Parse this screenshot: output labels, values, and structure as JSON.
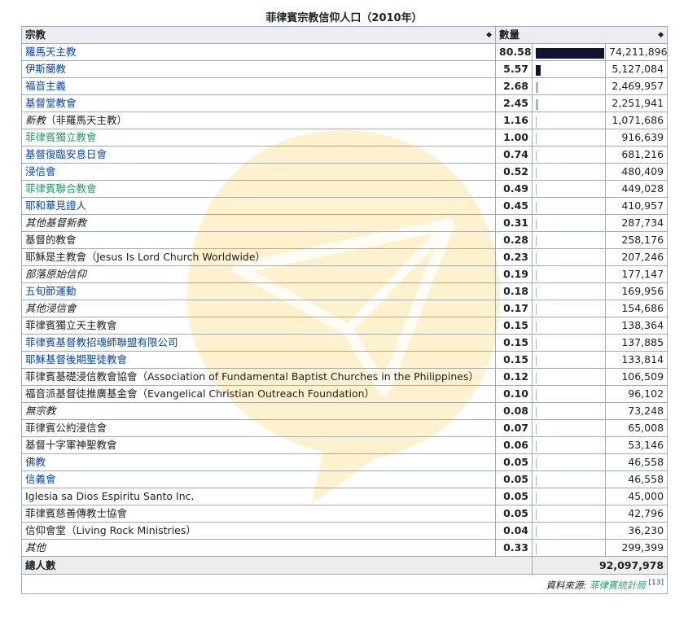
{
  "caption": "菲律賓宗教信仰人口（2010年）",
  "headers": {
    "religion": "宗教",
    "count": "數量"
  },
  "rows": [
    {
      "name": "羅馬天主教",
      "pct": "80.58",
      "count": "74,211,896",
      "style": "link"
    },
    {
      "name": "伊斯蘭教",
      "pct": "5.57",
      "count": "5,127,084",
      "style": "link"
    },
    {
      "name": "福音主義",
      "pct": "2.68",
      "count": "2,469,957",
      "style": "link"
    },
    {
      "name": "基督堂教會",
      "pct": "2.45",
      "count": "2,251,941",
      "style": "link"
    },
    {
      "name": "新教",
      "suffix": "（非羅馬天主教）",
      "pct": "1.16",
      "count": "1,071,686",
      "style": "italic"
    },
    {
      "name": "菲律賓獨立教會",
      "pct": "1.00",
      "count": "916,639",
      "style": "green"
    },
    {
      "name": "基督復臨安息日會",
      "pct": "0.74",
      "count": "681,216",
      "style": "link"
    },
    {
      "name": "浸信會",
      "pct": "0.52",
      "count": "480,409",
      "style": "link"
    },
    {
      "name": "菲律賓聯合教會",
      "pct": "0.49",
      "count": "449,028",
      "style": "green"
    },
    {
      "name": "耶和華見證人",
      "pct": "0.45",
      "count": "410,957",
      "style": "link"
    },
    {
      "name": "其他基督新教",
      "pct": "0.31",
      "count": "287,734",
      "style": "italic"
    },
    {
      "name": "基督的教會",
      "pct": "0.28",
      "count": "258,176",
      "style": "plain"
    },
    {
      "name": "耶穌是主教會（Jesus Is Lord Church Worldwide）",
      "pct": "0.23",
      "count": "207,246",
      "style": "plain"
    },
    {
      "name": "部落原始信仰",
      "pct": "0.19",
      "count": "177,147",
      "style": "italic"
    },
    {
      "name": "五旬節運動",
      "pct": "0.18",
      "count": "169,956",
      "style": "link"
    },
    {
      "name": "其他浸信會",
      "pct": "0.17",
      "count": "154,686",
      "style": "italic"
    },
    {
      "name": "菲律賓獨立天主教會",
      "pct": "0.15",
      "count": "138,364",
      "style": "plain"
    },
    {
      "name": "菲律賓基督教招魂師聯盟有限公司",
      "pct": "0.15",
      "count": "137,885",
      "style": "link"
    },
    {
      "name": "耶穌基督後期聖徒教會",
      "pct": "0.15",
      "count": "133,814",
      "style": "link"
    },
    {
      "name": "菲律賓基礎浸信教會協會（Association of Fundamental Baptist Churches in the Philippines）",
      "pct": "0.12",
      "count": "106,509",
      "style": "plain"
    },
    {
      "name": "福音派基督徒推廣基金會（Evangelical Christian Outreach Foundation）",
      "pct": "0.10",
      "count": "96,102",
      "style": "plain"
    },
    {
      "name": "無宗教",
      "pct": "0.08",
      "count": "73,248",
      "style": "italic"
    },
    {
      "name": "菲律賓公約浸信會",
      "pct": "0.07",
      "count": "65,008",
      "style": "plain"
    },
    {
      "name": "基督十字軍神聖教會",
      "pct": "0.06",
      "count": "53,146",
      "style": "plain"
    },
    {
      "name": "佛教",
      "pct": "0.05",
      "count": "46,558",
      "style": "link"
    },
    {
      "name": "信義會",
      "pct": "0.05",
      "count": "46,558",
      "style": "link"
    },
    {
      "name": "Iglesia sa Dios Espiritu Santo Inc.",
      "pct": "0.05",
      "count": "45,000",
      "style": "plain"
    },
    {
      "name": "菲律賓慈善傳教士協會",
      "pct": "0.05",
      "count": "42,796",
      "style": "plain"
    },
    {
      "name": "信仰會堂（Living Rock Ministries）",
      "pct": "0.04",
      "count": "36,230",
      "style": "plain"
    },
    {
      "name": "其他",
      "pct": "0.33",
      "count": "299,399",
      "style": "italic"
    }
  ],
  "total": {
    "label": "總人數",
    "count": "92,097,978"
  },
  "source": {
    "label": "資料來源:",
    "name": "菲律賓統計局",
    "ref": "[13]"
  },
  "colors": {
    "bar": "#0d1533",
    "bar_light": "#a9b3c8",
    "link": "#0645ad",
    "green_link": "#1e9a6d",
    "header_bg": "#eaecf0",
    "border": "#a2a9b1"
  },
  "icons": {
    "sort": "sort-arrows-icon",
    "watermark": "paper-plane-watermark-icon"
  }
}
